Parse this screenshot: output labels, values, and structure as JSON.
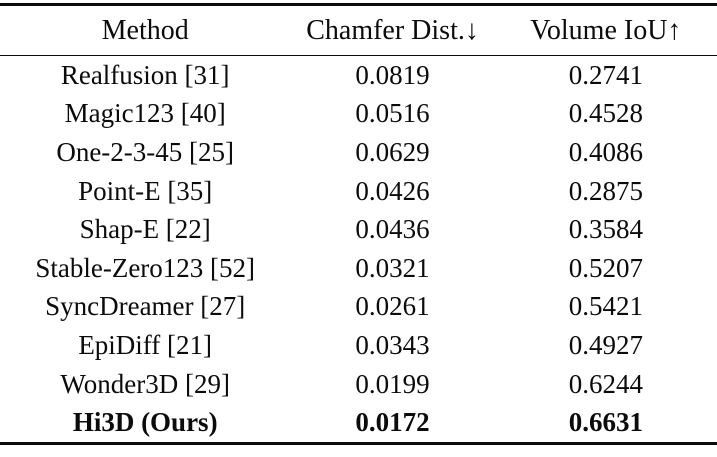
{
  "table": {
    "columns": [
      {
        "label": "Method"
      },
      {
        "label": "Chamfer Dist.↓"
      },
      {
        "label": "Volume IoU↑"
      }
    ],
    "rows": [
      {
        "method": "Realfusion [31]",
        "chamfer": "0.0819",
        "iou": "0.2741"
      },
      {
        "method": "Magic123 [40]",
        "chamfer": "0.0516",
        "iou": "0.4528"
      },
      {
        "method": "One-2-3-45 [25]",
        "chamfer": "0.0629",
        "iou": "0.4086"
      },
      {
        "method": "Point-E [35]",
        "chamfer": "0.0426",
        "iou": "0.2875"
      },
      {
        "method": "Shap-E [22]",
        "chamfer": "0.0436",
        "iou": "0.3584"
      },
      {
        "method": "Stable-Zero123 [52]",
        "chamfer": "0.0321",
        "iou": "0.5207"
      },
      {
        "method": "SyncDreamer [27]",
        "chamfer": "0.0261",
        "iou": "0.5421"
      },
      {
        "method": "EpiDiff [21]",
        "chamfer": "0.0343",
        "iou": "0.4927"
      },
      {
        "method": "Wonder3D [29]",
        "chamfer": "0.0199",
        "iou": "0.6244"
      },
      {
        "method": "Hi3D (Ours)",
        "chamfer": "0.0172",
        "iou": "0.6631",
        "bold": true
      }
    ]
  },
  "colors": {
    "text": "#0b0b0b",
    "background": "#ffffff",
    "rule": "#0b0b0b"
  }
}
